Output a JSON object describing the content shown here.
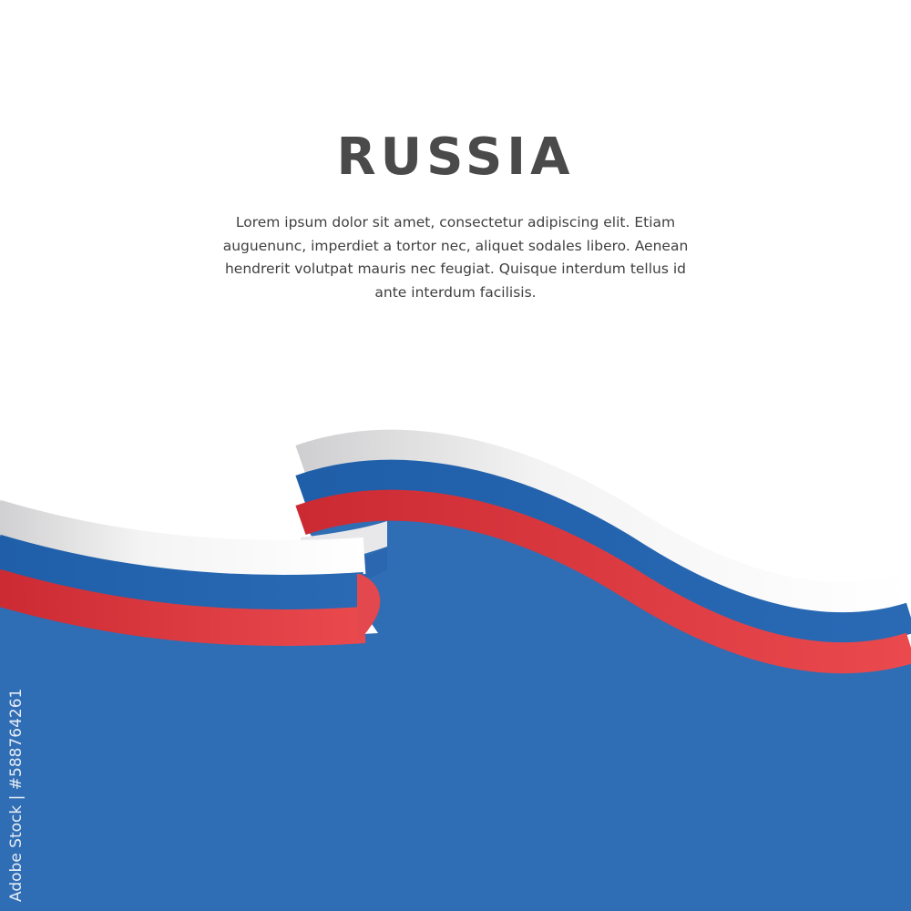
{
  "title": "RUSSIA",
  "description": "Lorem ipsum dolor sit amet, consectetur adipiscing elit. Etiam auguenunc, imperdiet a tortor nec, aliquet sodales libero. Aenean hendrerit volutpat mauris nec feugiat. Quisque interdum tellus id ante interdum facilisis.",
  "credit": "Adobe Stock | #588764261",
  "colors": {
    "white": "#f2f2f2",
    "blue": "#1f5ea8",
    "red": "#d9333b",
    "background_blue": "#2f6db5",
    "text": "#4a4a4a"
  },
  "image": {
    "subject": "waving-russian-flag-ribbon"
  }
}
